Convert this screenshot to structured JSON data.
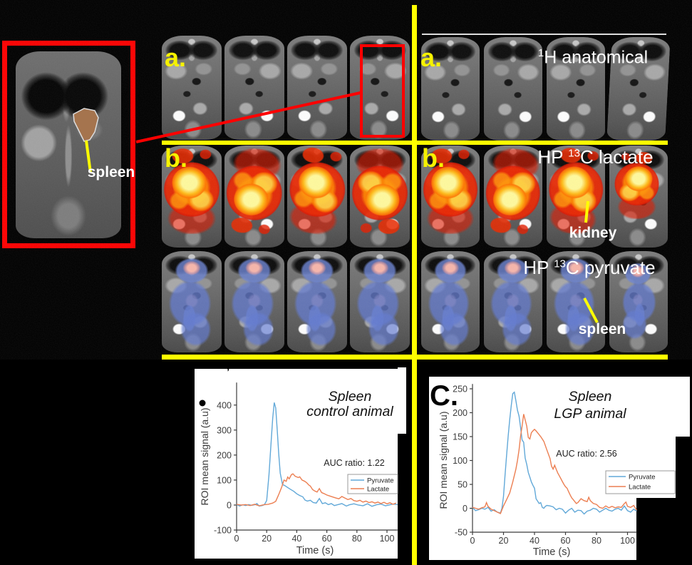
{
  "colors": {
    "annotation_yellow": "#f6f200",
    "divider_yellow": "#ffff00",
    "highlight_red": "#ff0000",
    "label_white": "#ffffff",
    "pyruvate_blue": "#61a8d8",
    "lactate_orange": "#ec7f52",
    "spleen_roi_brown": "#a5744e"
  },
  "panels": {
    "inset": {
      "annotation": "spleen"
    },
    "anatomical_left": {
      "label": "a."
    },
    "anatomical_right": {
      "label": "a.",
      "title_sup": "1",
      "title_rest": "H anatomical"
    },
    "lactate_left": {
      "label": "b."
    },
    "lactate_right": {
      "label": "b.",
      "title_pre": "HP ",
      "title_sup": "13",
      "title_rest": "C lactate",
      "annotation": "kidney"
    },
    "pyruvate_right": {
      "title_pre": "HP ",
      "title_sup": "13",
      "title_rest": "C pyruvate",
      "annotation": "spleen"
    }
  },
  "chart_data": [
    {
      "type": "line",
      "title_lines": [
        "Spleen",
        "control animal"
      ],
      "auc_label": "AUC ratio: 1.22",
      "xlabel": "Time (s)",
      "ylabel": "ROI mean signal (a.u)",
      "xlim": [
        0,
        107
      ],
      "ylim": [
        -100,
        490
      ],
      "xticks": [
        0,
        20,
        40,
        60,
        80,
        100
      ],
      "yticks": [
        -100,
        0,
        100,
        200,
        300,
        400
      ],
      "legend": [
        "Pyruvate",
        "Lactate"
      ],
      "series": [
        {
          "name": "Pyruvate",
          "color": "#61a8d8",
          "points": [
            [
              0,
              2
            ],
            [
              2,
              -4
            ],
            [
              4,
              1
            ],
            [
              6,
              -2
            ],
            [
              8,
              2
            ],
            [
              10,
              -1
            ],
            [
              12,
              1
            ],
            [
              13.5,
              6
            ],
            [
              15,
              -4
            ],
            [
              17,
              -2
            ],
            [
              18.5,
              2
            ],
            [
              20,
              18
            ],
            [
              21.5,
              120
            ],
            [
              23,
              255
            ],
            [
              24,
              345
            ],
            [
              25,
              410
            ],
            [
              26,
              388
            ],
            [
              27,
              300
            ],
            [
              28,
              205
            ],
            [
              29,
              128
            ],
            [
              30.5,
              82
            ],
            [
              32,
              78
            ],
            [
              34,
              70
            ],
            [
              36,
              62
            ],
            [
              38,
              55
            ],
            [
              40,
              45
            ],
            [
              42,
              38
            ],
            [
              44,
              33
            ],
            [
              45.5,
              20
            ],
            [
              47,
              16
            ],
            [
              49,
              19
            ],
            [
              51,
              10
            ],
            [
              53,
              8
            ],
            [
              55,
              26
            ],
            [
              57,
              6
            ],
            [
              59,
              9
            ],
            [
              61,
              2
            ],
            [
              63,
              6
            ],
            [
              65,
              -2
            ],
            [
              67,
              1
            ],
            [
              70,
              6
            ],
            [
              73,
              -4
            ],
            [
              75,
              1
            ],
            [
              78,
              5
            ],
            [
              81,
              0
            ],
            [
              84,
              -3
            ],
            [
              87,
              5
            ],
            [
              90,
              -5
            ],
            [
              93,
              1
            ],
            [
              96,
              4
            ],
            [
              99,
              -3
            ],
            [
              102,
              1
            ],
            [
              104,
              4
            ],
            [
              107,
              2
            ]
          ]
        },
        {
          "name": "Lactate",
          "color": "#ec7f52",
          "points": [
            [
              0,
              3
            ],
            [
              3,
              0
            ],
            [
              6,
              2
            ],
            [
              9,
              -2
            ],
            [
              12,
              3
            ],
            [
              15,
              -3
            ],
            [
              18,
              1
            ],
            [
              21,
              3
            ],
            [
              24,
              8
            ],
            [
              26,
              15
            ],
            [
              28,
              42
            ],
            [
              30,
              72
            ],
            [
              31.5,
              100
            ],
            [
              33,
              95
            ],
            [
              34,
              112
            ],
            [
              35,
              105
            ],
            [
              36.5,
              122
            ],
            [
              37.5,
              125
            ],
            [
              39,
              115
            ],
            [
              41,
              110
            ],
            [
              42,
              113
            ],
            [
              43.5,
              100
            ],
            [
              45,
              96
            ],
            [
              46.5,
              90
            ],
            [
              48,
              80
            ],
            [
              49,
              76
            ],
            [
              50.5,
              62
            ],
            [
              52,
              56
            ],
            [
              53.5,
              52
            ],
            [
              55,
              66
            ],
            [
              56.5,
              50
            ],
            [
              58,
              46
            ],
            [
              60,
              40
            ],
            [
              62,
              36
            ],
            [
              64,
              32
            ],
            [
              66,
              28
            ],
            [
              68,
              25
            ],
            [
              70,
              34
            ],
            [
              72,
              28
            ],
            [
              74,
              22
            ],
            [
              76,
              26
            ],
            [
              78,
              18
            ],
            [
              80,
              15
            ],
            [
              82,
              19
            ],
            [
              84,
              12
            ],
            [
              86,
              16
            ],
            [
              88,
              10
            ],
            [
              90,
              13
            ],
            [
              92,
              8
            ],
            [
              94,
              12
            ],
            [
              96,
              6
            ],
            [
              98,
              11
            ],
            [
              100,
              5
            ],
            [
              102,
              9
            ],
            [
              104,
              3
            ],
            [
              106,
              8
            ]
          ]
        }
      ]
    },
    {
      "type": "line",
      "panel_label": "C.",
      "title_lines": [
        "Spleen",
        "LGP animal"
      ],
      "auc_label": "AUC ratio: 2.56",
      "xlabel": "Time (s)",
      "ylabel": "ROI mean signal (a.u)",
      "xlim": [
        0,
        106
      ],
      "ylim": [
        -50,
        260
      ],
      "xticks": [
        0,
        20,
        40,
        60,
        80,
        100
      ],
      "yticks": [
        -50,
        0,
        50,
        100,
        150,
        200,
        250
      ],
      "legend": [
        "Pyruvate",
        "Lactate"
      ],
      "series": [
        {
          "name": "Pyruvate",
          "color": "#61a8d8",
          "points": [
            [
              0,
              2
            ],
            [
              2,
              -5
            ],
            [
              4,
              -3
            ],
            [
              6,
              0
            ],
            [
              8,
              -2
            ],
            [
              10,
              2
            ],
            [
              12,
              -6
            ],
            [
              14,
              -3
            ],
            [
              16,
              -8
            ],
            [
              18,
              -10
            ],
            [
              19,
              0
            ],
            [
              20,
              25
            ],
            [
              21,
              70
            ],
            [
              22,
              110
            ],
            [
              23,
              150
            ],
            [
              24,
              185
            ],
            [
              25,
              215
            ],
            [
              26,
              240
            ],
            [
              27,
              243
            ],
            [
              28,
              225
            ],
            [
              29,
              205
            ],
            [
              30,
              193
            ],
            [
              31,
              170
            ],
            [
              32,
              143
            ],
            [
              33,
              138
            ],
            [
              34,
              105
            ],
            [
              35,
              92
            ],
            [
              36,
              75
            ],
            [
              37,
              65
            ],
            [
              38,
              55
            ],
            [
              39,
              48
            ],
            [
              40,
              42
            ],
            [
              41,
              20
            ],
            [
              42,
              15
            ],
            [
              43,
              10
            ],
            [
              44,
              12
            ],
            [
              45,
              2
            ],
            [
              46,
              0
            ],
            [
              47,
              4
            ],
            [
              48,
              6
            ],
            [
              50,
              5
            ],
            [
              52,
              3
            ],
            [
              54,
              -3
            ],
            [
              56,
              0
            ],
            [
              58,
              -2
            ],
            [
              60,
              -10
            ],
            [
              62,
              -4
            ],
            [
              64,
              0
            ],
            [
              66,
              -8
            ],
            [
              68,
              -4
            ],
            [
              70,
              -5
            ],
            [
              72,
              -12
            ],
            [
              74,
              -6
            ],
            [
              76,
              -4
            ],
            [
              78,
              0
            ],
            [
              80,
              -2
            ],
            [
              82,
              -8
            ],
            [
              84,
              -4
            ],
            [
              86,
              0
            ],
            [
              88,
              -4
            ],
            [
              90,
              -6
            ],
            [
              92,
              -2
            ],
            [
              94,
              0
            ],
            [
              96,
              -4
            ],
            [
              98,
              5
            ],
            [
              100,
              -5
            ],
            [
              102,
              -8
            ],
            [
              104,
              -2
            ],
            [
              106,
              -6
            ]
          ]
        },
        {
          "name": "Lactate",
          "color": "#ec7f52",
          "points": [
            [
              0,
              2
            ],
            [
              2,
              0
            ],
            [
              4,
              -2
            ],
            [
              6,
              1
            ],
            [
              8,
              3
            ],
            [
              9,
              12
            ],
            [
              10,
              4
            ],
            [
              12,
              -2
            ],
            [
              14,
              -5
            ],
            [
              16,
              -8
            ],
            [
              18,
              -11
            ],
            [
              20,
              5
            ],
            [
              22,
              18
            ],
            [
              24,
              32
            ],
            [
              26,
              55
            ],
            [
              28,
              82
            ],
            [
              29,
              100
            ],
            [
              30,
              122
            ],
            [
              31,
              150
            ],
            [
              32,
              172
            ],
            [
              33,
              197
            ],
            [
              34,
              185
            ],
            [
              35,
              172
            ],
            [
              36,
              148
            ],
            [
              37,
              145
            ],
            [
              38,
              158
            ],
            [
              39,
              162
            ],
            [
              40,
              165
            ],
            [
              41,
              162
            ],
            [
              42,
              158
            ],
            [
              44,
              150
            ],
            [
              46,
              140
            ],
            [
              48,
              122
            ],
            [
              50,
              104
            ],
            [
              51,
              88
            ],
            [
              52,
              82
            ],
            [
              53,
              90
            ],
            [
              54,
              82
            ],
            [
              55,
              74
            ],
            [
              56,
              68
            ],
            [
              57,
              62
            ],
            [
              58,
              56
            ],
            [
              59,
              50
            ],
            [
              60,
              45
            ],
            [
              61,
              42
            ],
            [
              62,
              35
            ],
            [
              63,
              28
            ],
            [
              64,
              22
            ],
            [
              65,
              18
            ],
            [
              66,
              14
            ],
            [
              67,
              10
            ],
            [
              68,
              12
            ],
            [
              70,
              20
            ],
            [
              72,
              16
            ],
            [
              74,
              14
            ],
            [
              75,
              23
            ],
            [
              76,
              16
            ],
            [
              78,
              10
            ],
            [
              80,
              8
            ],
            [
              82,
              2
            ],
            [
              84,
              0
            ],
            [
              86,
              5
            ],
            [
              88,
              1
            ],
            [
              90,
              4
            ],
            [
              92,
              1
            ],
            [
              94,
              3
            ],
            [
              96,
              2
            ],
            [
              98,
              10
            ],
            [
              99,
              13
            ],
            [
              100,
              4
            ],
            [
              102,
              2
            ],
            [
              104,
              6
            ],
            [
              106,
              -4
            ]
          ]
        }
      ]
    }
  ]
}
